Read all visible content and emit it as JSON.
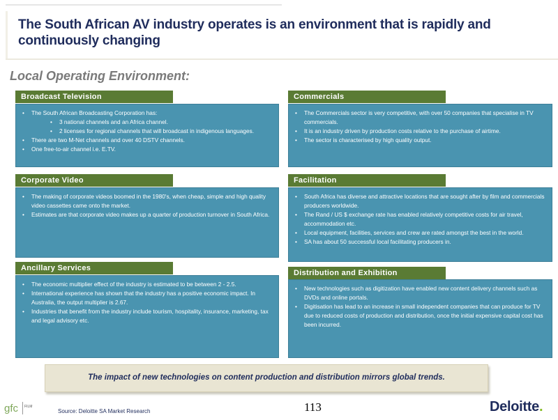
{
  "title": "The South African AV industry operates is an environment that is rapidly and continuously changing",
  "section_heading": "Local Operating Environment:",
  "panels": {
    "broadcast": {
      "heading": "Broadcast Television",
      "items": [
        {
          "text": "The South African Broadcasting Corporation has:",
          "level": 1
        },
        {
          "text": "3 national channels and an Africa channel.",
          "level": 2
        },
        {
          "text": "2 licenses for regional channels that will broadcast in indigenous languages.",
          "level": 2
        },
        {
          "text": "There are two M-Net channels and over 40 DSTV channels.",
          "level": 1
        },
        {
          "text": "One free-to-air channel i.e. E.TV.",
          "level": 1
        }
      ]
    },
    "commercials": {
      "heading": "Commercials",
      "items": [
        {
          "text": "The Commercials sector is very competitive, with over 50 companies that specialise in TV commercials.",
          "level": 1
        },
        {
          "text": "It is an industry driven by production costs relative to the purchase of airtime.",
          "level": 1
        },
        {
          "text": "The sector is characterised by high quality output.",
          "level": 1
        }
      ]
    },
    "corporate": {
      "heading": "Corporate Video",
      "items": [
        {
          "text": "The making of corporate videos boomed in the 1980's, when cheap, simple and high quality video cassettes came onto the market.",
          "level": 1
        },
        {
          "text": "Estimates are that corporate video makes up a quarter of production turnover in South Africa.",
          "level": 1
        }
      ]
    },
    "facilitation": {
      "heading": "Facilitation",
      "items": [
        {
          "text": "South Africa has diverse and attractive locations that are sought after by film and commercials producers worldwide.",
          "level": 1
        },
        {
          "text": "The Rand / US $ exchange rate has enabled relatively competitive costs for air travel, accommodation etc.",
          "level": 1
        },
        {
          "text": "Local equipment, facilities, services and crew are rated amongst the best in the world.",
          "level": 1
        },
        {
          "text": "SA  has about 50 successful local facilitating producers in.",
          "level": 1
        }
      ]
    },
    "ancillary": {
      "heading": "Ancillary Services",
      "items": [
        {
          "text": "The economic multiplier effect of the industry is estimated to be between 2 - 2.5.",
          "level": 1
        },
        {
          "text": "International experience has shown that the industry has a positive economic impact. In Australia, the output multiplier is 2.67.",
          "level": 1
        },
        {
          "text": "Industries that benefit from the industry include tourism, hospitality, insurance, marketing, tax and legal advisory etc.",
          "level": 1
        }
      ]
    },
    "distribution": {
      "heading": "Distribution and Exhibition",
      "items": [
        {
          "text": "New technologies such as digitization have enabled new content delivery channels such as DVDs and online portals.",
          "level": 1
        },
        {
          "text": "Digitisation has lead to an increase in small independent companies that can produce for TV due to reduced costs of production and distribution, once the initial expensive capital cost has been incurred.",
          "level": 1
        }
      ]
    }
  },
  "callout": "The impact of new technologies on content production and distribution mirrors global trends.",
  "footer": {
    "source": "Source: Deloitte SA Market Research",
    "page_number": "113",
    "logo_left_text": "gfc",
    "logo_left_sub": "FILM",
    "logo_right_text": "Deloitte",
    "logo_right_dot": "."
  },
  "colors": {
    "title": "#1f2c5c",
    "tab": "#5a7b34",
    "box": "#4a94b0",
    "callout_bg": "#e9e5d3",
    "deloitte_green": "#86bc25"
  }
}
